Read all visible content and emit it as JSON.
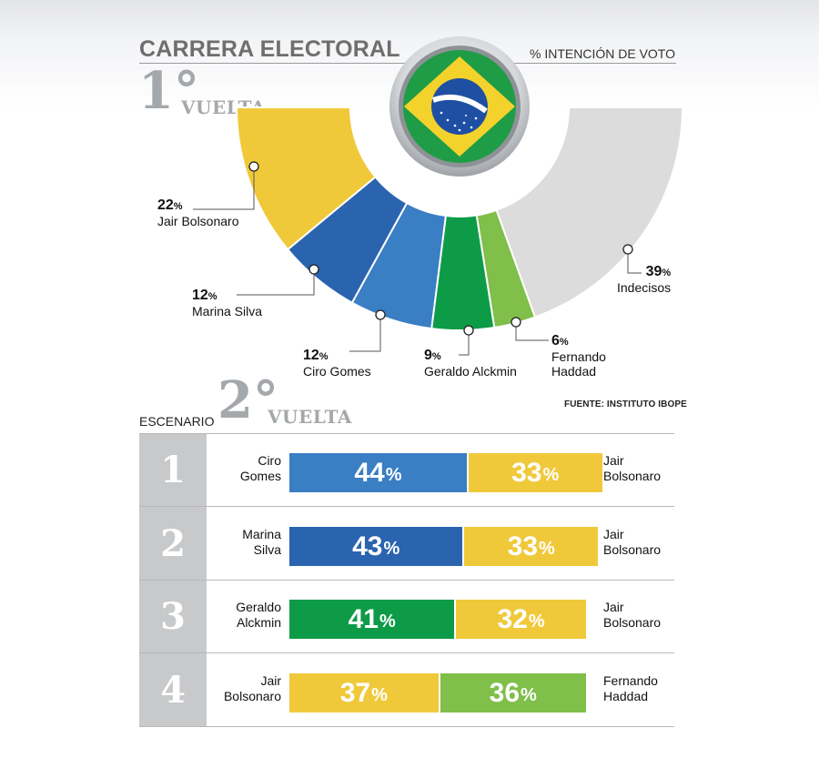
{
  "header": {
    "title": "CARRERA ELECTORAL",
    "subtitle": "% INTENCIÓN DE VOTO",
    "round1_number": "1°",
    "round1_word": "VUELTA",
    "source": "FUENTE: INSTITUTO IBOPE",
    "scenario_label": "ESCENARIO",
    "round2_number": "2°",
    "round2_word": "VUELTA"
  },
  "colors": {
    "yellow": "#f0c93b",
    "blue_dark": "#2b64ae",
    "blue": "#3a7ec4",
    "green_dark": "#0e9b48",
    "green_light": "#7fbf4a",
    "gray": "#dcdcdc"
  },
  "chart_data": [
    {
      "type": "pie",
      "variant": "half-donut",
      "title": "1° VUELTA",
      "unit": "%",
      "slices": [
        {
          "label": "Jair Bolsonaro",
          "value": 22,
          "color": "#f0c93b"
        },
        {
          "label": "Marina Silva",
          "value": 12,
          "color": "#2b64ae"
        },
        {
          "label": "Ciro Gomes",
          "value": 12,
          "color": "#3a7ec4"
        },
        {
          "label": "Geraldo Alckmin",
          "value": 9,
          "color": "#0e9b48"
        },
        {
          "label": "Fernando Haddad",
          "value": 6,
          "color": "#7fbf4a"
        },
        {
          "label": "Indecisos",
          "value": 39,
          "color": "#dcdcdc"
        }
      ],
      "labels": [
        {
          "value": "22",
          "name": "Jair Bolsonaro"
        },
        {
          "value": "12",
          "name": "Marina Silva"
        },
        {
          "value": "12",
          "name": "Ciro Gomes"
        },
        {
          "value": "9",
          "name": "Geraldo Alckmin"
        },
        {
          "value": "6",
          "name": "Fernando\nHaddad"
        },
        {
          "value": "39",
          "name": "Indecisos"
        }
      ]
    },
    {
      "type": "bar",
      "variant": "stacked-horizontal",
      "title": "ESCENARIO 2° VUELTA",
      "unit": "%",
      "scenarios": [
        {
          "number": "1",
          "left": {
            "name": "Ciro\nGomes",
            "value": 44,
            "color": "#3a7ec4"
          },
          "right": {
            "name": "Jair\nBolsonaro",
            "value": 33,
            "color": "#f0c93b"
          }
        },
        {
          "number": "2",
          "left": {
            "name": "Marina\nSilva",
            "value": 43,
            "color": "#2b64ae"
          },
          "right": {
            "name": "Jair\nBolsonaro",
            "value": 33,
            "color": "#f0c93b"
          }
        },
        {
          "number": "3",
          "left": {
            "name": "Geraldo\nAlckmin",
            "value": 41,
            "color": "#0e9b48"
          },
          "right": {
            "name": "Jair\nBolsonaro",
            "value": 32,
            "color": "#f0c93b"
          }
        },
        {
          "number": "4",
          "left": {
            "name": "Jair\nBolsonaro",
            "value": 37,
            "color": "#f0c93b"
          },
          "right": {
            "name": "Fernando\nHaddad",
            "value": 36,
            "color": "#7fbf4a"
          }
        }
      ]
    }
  ]
}
